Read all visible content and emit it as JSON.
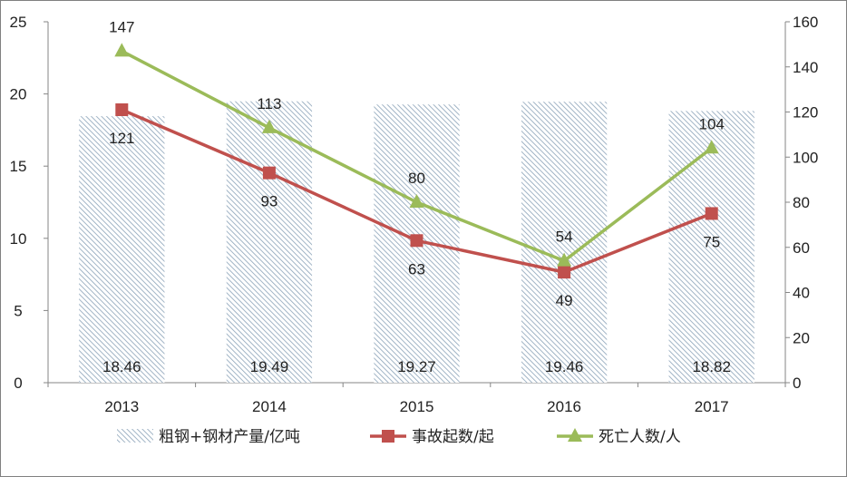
{
  "chart_data": {
    "type": "bar+line",
    "categories": [
      "2013",
      "2014",
      "2015",
      "2016",
      "2017"
    ],
    "series": [
      {
        "name": "粗钢+钢材产量/亿吨",
        "type": "bar",
        "axis": "left",
        "values": [
          18.46,
          19.49,
          19.27,
          19.46,
          18.82
        ],
        "labels": [
          "18.46",
          "19.49",
          "19.27",
          "19.46",
          "18.82"
        ],
        "color": "#9fb4c8"
      },
      {
        "name": "事故起数/起",
        "type": "line",
        "axis": "right",
        "marker": "square",
        "values": [
          121,
          93,
          63,
          49,
          75
        ],
        "labels": [
          "121",
          "93",
          "63",
          "49",
          "75"
        ],
        "color": "#c0504d"
      },
      {
        "name": "死亡人数/人",
        "type": "line",
        "axis": "right",
        "marker": "triangle",
        "values": [
          147,
          113,
          80,
          54,
          104
        ],
        "labels": [
          "147",
          "113",
          "80",
          "54",
          "104"
        ],
        "color": "#9bbb59"
      }
    ],
    "y_left": {
      "min": 0,
      "max": 25,
      "ticks": [
        "0",
        "5",
        "10",
        "15",
        "20",
        "25"
      ]
    },
    "y_right": {
      "min": 0,
      "max": 160,
      "ticks": [
        "0",
        "20",
        "40",
        "60",
        "80",
        "100",
        "120",
        "140",
        "160"
      ]
    },
    "grid": false,
    "legend_position": "bottom"
  }
}
